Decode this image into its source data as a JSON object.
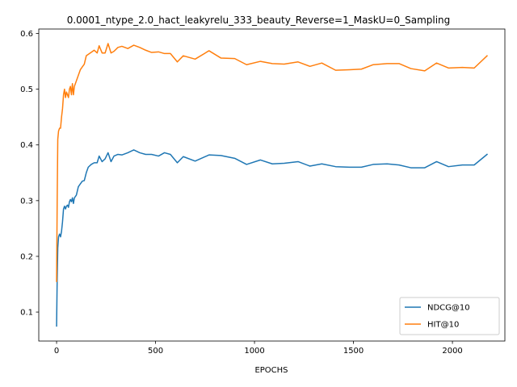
{
  "chart_data": {
    "type": "line",
    "title": "0.0001_ntype_2.0_hact_leakyrelu_333_beauty_Reverse=1_MaskU=0_Sampling",
    "xlabel": "EPOCHS",
    "ylabel": "",
    "xlim": [
      -90,
      2265
    ],
    "ylim": [
      0.048,
      0.608
    ],
    "xticks": [
      0,
      500,
      1000,
      1500,
      2000
    ],
    "yticks": [
      0.1,
      0.2,
      0.3,
      0.4,
      0.5,
      0.6
    ],
    "grid": false,
    "legend_position": "lower-right",
    "series": [
      {
        "name": "NDCG@10",
        "color": "#1f77b4",
        "points": [
          [
            0,
            0.075
          ],
          [
            3,
            0.16
          ],
          [
            6,
            0.215
          ],
          [
            10,
            0.235
          ],
          [
            15,
            0.24
          ],
          [
            20,
            0.235
          ],
          [
            25,
            0.245
          ],
          [
            30,
            0.262
          ],
          [
            35,
            0.285
          ],
          [
            40,
            0.29
          ],
          [
            45,
            0.285
          ],
          [
            50,
            0.29
          ],
          [
            55,
            0.292
          ],
          [
            60,
            0.288
          ],
          [
            65,
            0.298
          ],
          [
            70,
            0.302
          ],
          [
            75,
            0.298
          ],
          [
            80,
            0.305
          ],
          [
            85,
            0.295
          ],
          [
            90,
            0.305
          ],
          [
            100,
            0.31
          ],
          [
            110,
            0.325
          ],
          [
            120,
            0.33
          ],
          [
            130,
            0.335
          ],
          [
            140,
            0.336
          ],
          [
            150,
            0.35
          ],
          [
            160,
            0.36
          ],
          [
            175,
            0.365
          ],
          [
            190,
            0.368
          ],
          [
            205,
            0.368
          ],
          [
            215,
            0.38
          ],
          [
            230,
            0.37
          ],
          [
            245,
            0.375
          ],
          [
            260,
            0.386
          ],
          [
            275,
            0.37
          ],
          [
            290,
            0.38
          ],
          [
            310,
            0.383
          ],
          [
            330,
            0.382
          ],
          [
            360,
            0.386
          ],
          [
            390,
            0.391
          ],
          [
            420,
            0.386
          ],
          [
            450,
            0.383
          ],
          [
            480,
            0.383
          ],
          [
            515,
            0.38
          ],
          [
            545,
            0.386
          ],
          [
            575,
            0.383
          ],
          [
            610,
            0.368
          ],
          [
            640,
            0.379
          ],
          [
            700,
            0.371
          ],
          [
            770,
            0.382
          ],
          [
            830,
            0.381
          ],
          [
            900,
            0.376
          ],
          [
            960,
            0.365
          ],
          [
            1030,
            0.373
          ],
          [
            1090,
            0.366
          ],
          [
            1150,
            0.367
          ],
          [
            1220,
            0.37
          ],
          [
            1280,
            0.362
          ],
          [
            1340,
            0.366
          ],
          [
            1410,
            0.361
          ],
          [
            1480,
            0.36
          ],
          [
            1540,
            0.36
          ],
          [
            1600,
            0.365
          ],
          [
            1670,
            0.366
          ],
          [
            1730,
            0.364
          ],
          [
            1790,
            0.359
          ],
          [
            1860,
            0.359
          ],
          [
            1920,
            0.37
          ],
          [
            1980,
            0.361
          ],
          [
            2050,
            0.364
          ],
          [
            2110,
            0.364
          ],
          [
            2175,
            0.383
          ]
        ]
      },
      {
        "name": "HIT@10",
        "color": "#ff7f0e",
        "points": [
          [
            0,
            0.155
          ],
          [
            3,
            0.3
          ],
          [
            6,
            0.41
          ],
          [
            10,
            0.425
          ],
          [
            15,
            0.43
          ],
          [
            20,
            0.43
          ],
          [
            25,
            0.45
          ],
          [
            30,
            0.465
          ],
          [
            35,
            0.49
          ],
          [
            40,
            0.5
          ],
          [
            45,
            0.485
          ],
          [
            50,
            0.495
          ],
          [
            55,
            0.49
          ],
          [
            60,
            0.485
          ],
          [
            65,
            0.5
          ],
          [
            70,
            0.505
          ],
          [
            75,
            0.49
          ],
          [
            80,
            0.51
          ],
          [
            85,
            0.49
          ],
          [
            90,
            0.505
          ],
          [
            100,
            0.515
          ],
          [
            110,
            0.525
          ],
          [
            120,
            0.535
          ],
          [
            130,
            0.54
          ],
          [
            140,
            0.545
          ],
          [
            150,
            0.56
          ],
          [
            170,
            0.565
          ],
          [
            190,
            0.57
          ],
          [
            205,
            0.565
          ],
          [
            215,
            0.578
          ],
          [
            230,
            0.565
          ],
          [
            245,
            0.565
          ],
          [
            260,
            0.582
          ],
          [
            275,
            0.565
          ],
          [
            290,
            0.568
          ],
          [
            310,
            0.575
          ],
          [
            330,
            0.577
          ],
          [
            360,
            0.573
          ],
          [
            390,
            0.579
          ],
          [
            420,
            0.575
          ],
          [
            450,
            0.57
          ],
          [
            480,
            0.566
          ],
          [
            515,
            0.567
          ],
          [
            545,
            0.564
          ],
          [
            575,
            0.564
          ],
          [
            610,
            0.549
          ],
          [
            640,
            0.56
          ],
          [
            700,
            0.554
          ],
          [
            770,
            0.569
          ],
          [
            830,
            0.556
          ],
          [
            900,
            0.555
          ],
          [
            960,
            0.544
          ],
          [
            1030,
            0.55
          ],
          [
            1090,
            0.546
          ],
          [
            1150,
            0.545
          ],
          [
            1220,
            0.549
          ],
          [
            1280,
            0.541
          ],
          [
            1340,
            0.547
          ],
          [
            1410,
            0.534
          ],
          [
            1480,
            0.535
          ],
          [
            1540,
            0.536
          ],
          [
            1600,
            0.544
          ],
          [
            1670,
            0.546
          ],
          [
            1730,
            0.546
          ],
          [
            1790,
            0.537
          ],
          [
            1860,
            0.533
          ],
          [
            1920,
            0.547
          ],
          [
            1980,
            0.538
          ],
          [
            2050,
            0.539
          ],
          [
            2110,
            0.538
          ],
          [
            2175,
            0.56
          ]
        ]
      }
    ]
  }
}
